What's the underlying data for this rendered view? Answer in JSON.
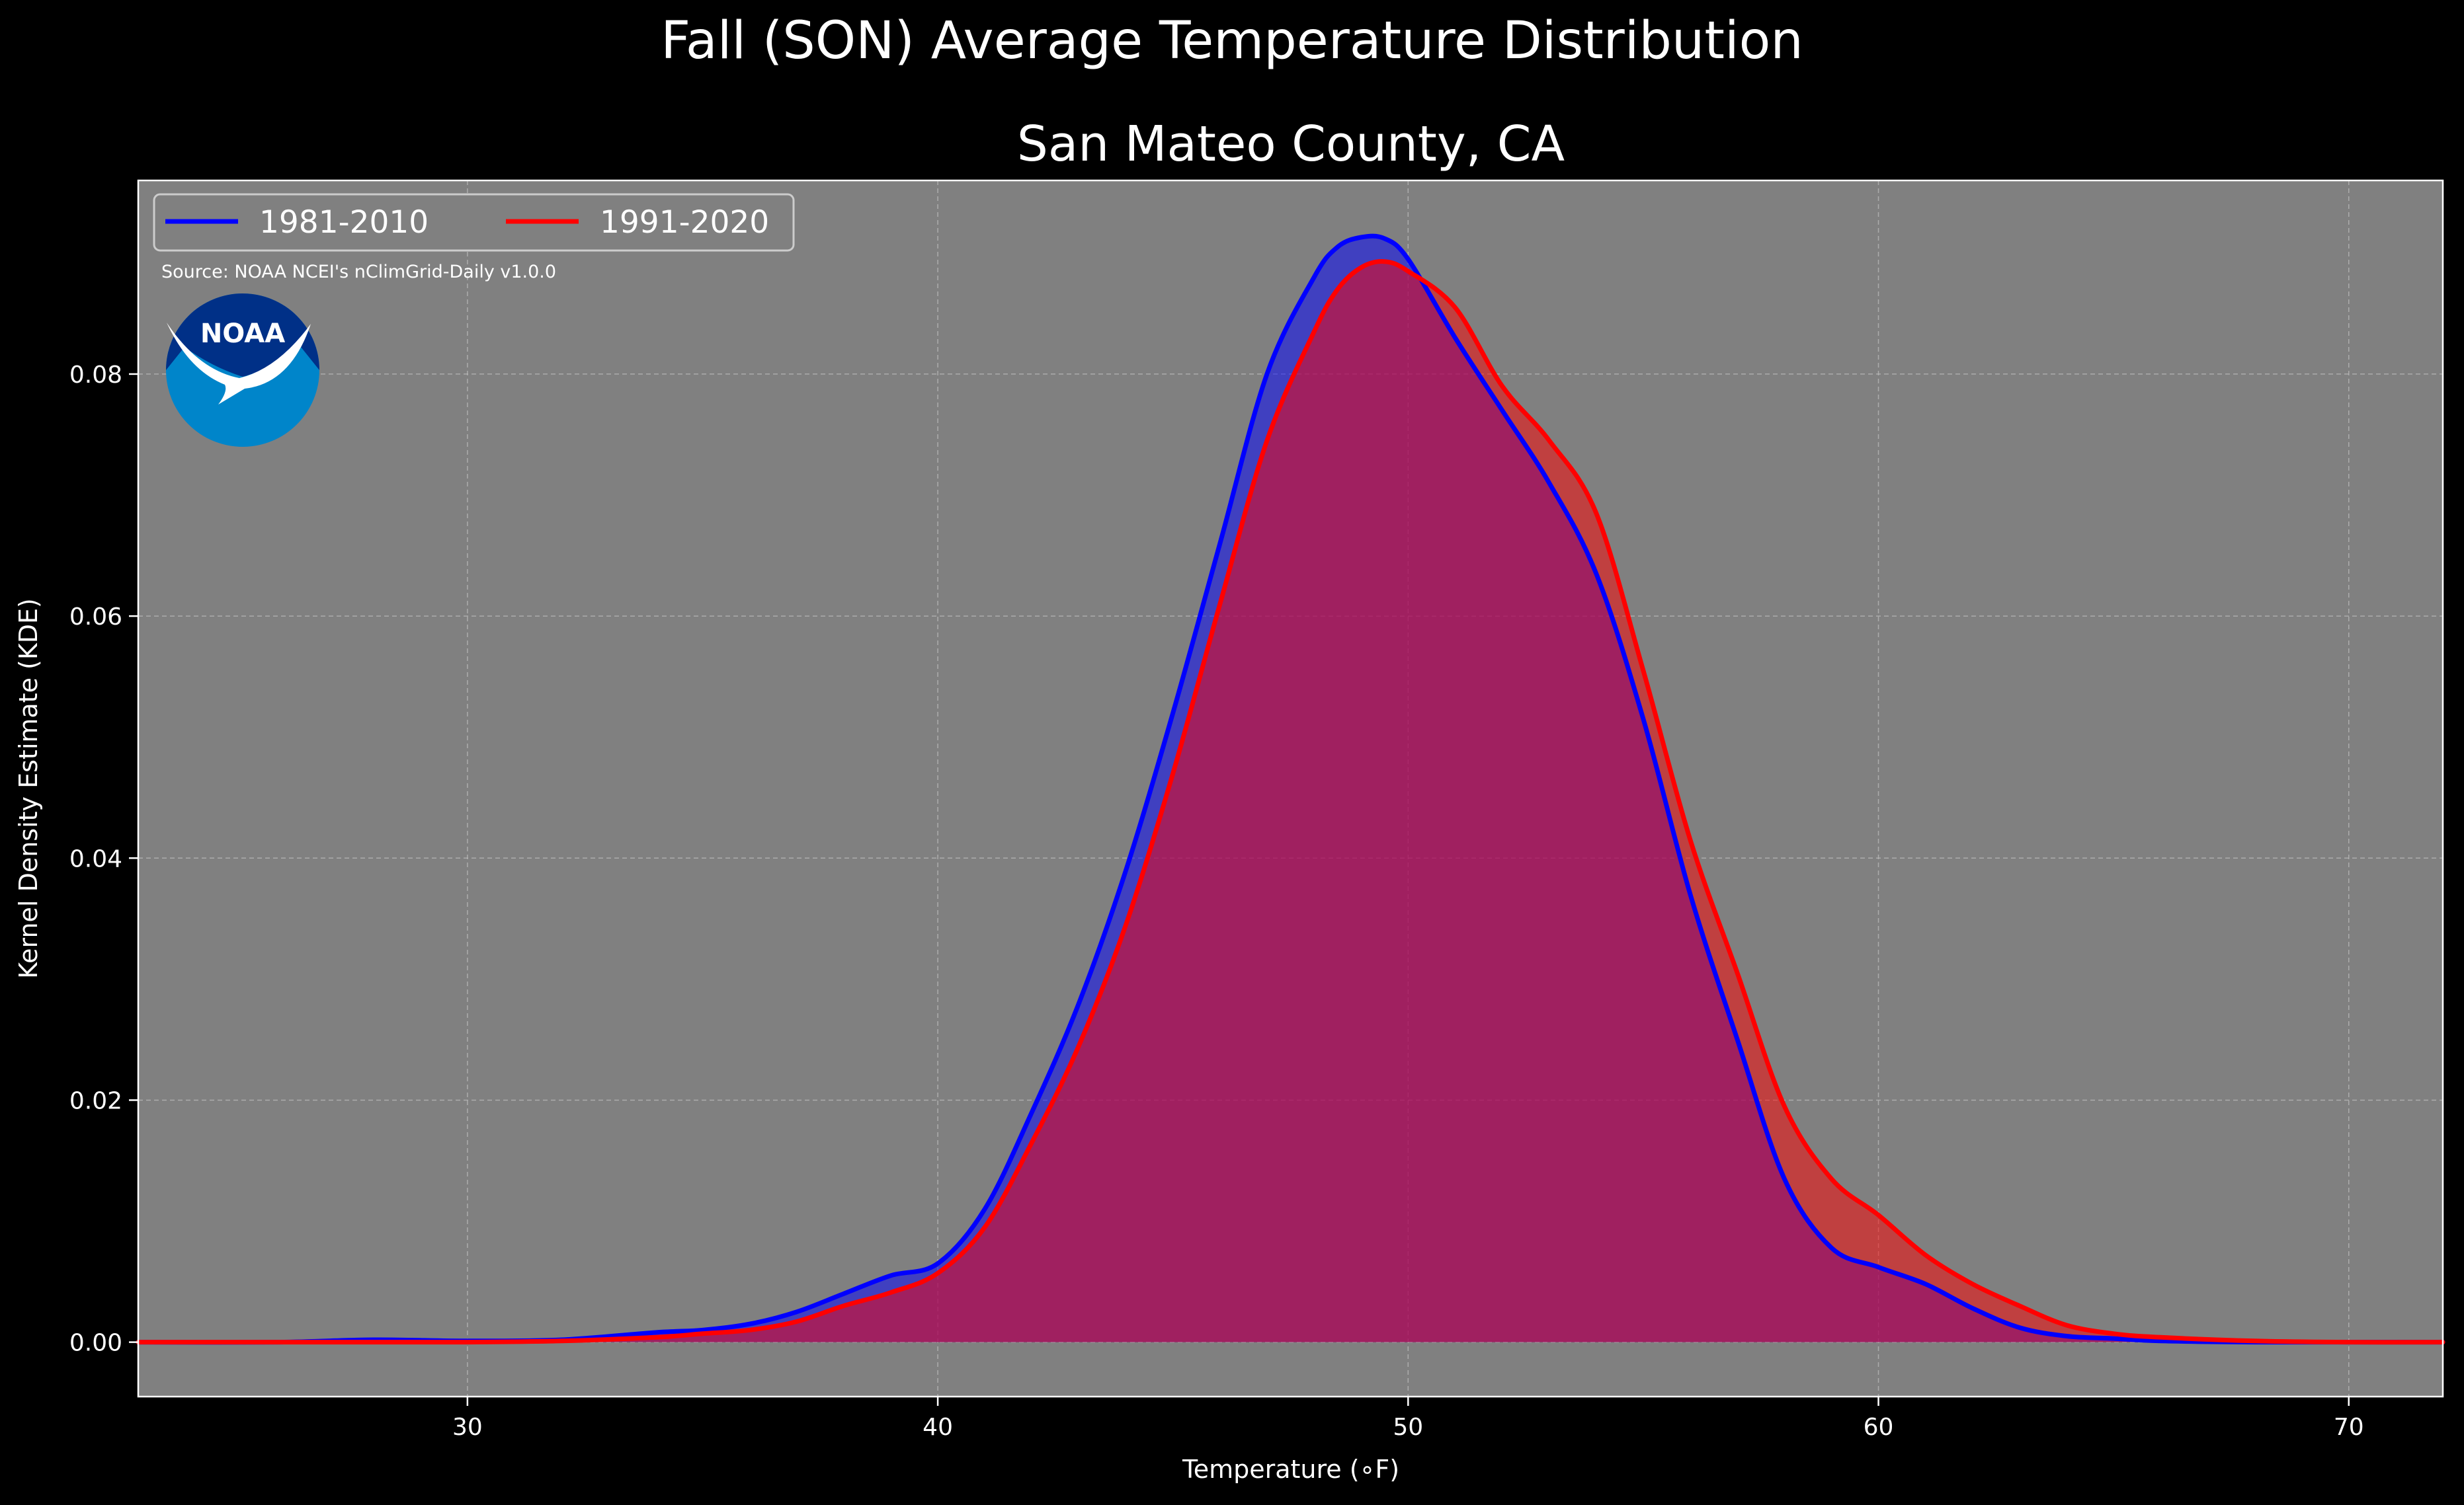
{
  "chart_data": {
    "type": "area",
    "suptitle": "Fall (SON) Average Temperature Distribution",
    "title": "San Mateo County, CA",
    "xlabel": "Temperature (∘F)",
    "ylabel": "Kernel Density Estimate (KDE)",
    "xlim": [
      23,
      72
    ],
    "ylim": [
      -0.0045,
      0.096
    ],
    "xticks": [
      30,
      40,
      50,
      60,
      70
    ],
    "yticks": [
      0.0,
      0.02,
      0.04,
      0.06,
      0.08
    ],
    "xtick_labels": [
      "30",
      "40",
      "50",
      "60",
      "70"
    ],
    "ytick_labels": [
      "0.00",
      "0.02",
      "0.04",
      "0.06",
      "0.08"
    ],
    "grid": true,
    "legend_position": "upper-left",
    "source": "Source: NOAA NCEI's nClimGrid-Daily v1.0.0",
    "logo_text": "NOAA",
    "colors": {
      "background": "#000000",
      "plot_background": "#808080",
      "series_1": "#0000ff",
      "series_2": "#ff0000",
      "overlap_fill": "#9e1f5c",
      "logo_light": "#0085ca",
      "logo_dark": "#003087"
    },
    "series": [
      {
        "name": "1981-2010",
        "color": "#0000ff",
        "x": [
          23,
          26,
          28,
          30,
          32,
          34,
          35,
          36,
          37,
          38,
          39,
          40,
          41,
          42,
          43,
          44,
          45,
          46,
          47,
          48,
          48.5,
          49,
          49.5,
          50,
          51,
          52,
          53,
          54,
          55,
          56,
          57,
          58,
          59,
          60,
          61,
          62,
          63,
          64,
          65,
          66,
          68,
          70,
          72
        ],
        "y": [
          0.0,
          0.0,
          0.0002,
          0.0001,
          0.0002,
          0.0008,
          0.001,
          0.0015,
          0.0025,
          0.004,
          0.0055,
          0.0065,
          0.011,
          0.019,
          0.028,
          0.039,
          0.052,
          0.066,
          0.08,
          0.088,
          0.0905,
          0.0913,
          0.0912,
          0.0895,
          0.083,
          0.077,
          0.071,
          0.0635,
          0.0515,
          0.037,
          0.025,
          0.0135,
          0.0078,
          0.0062,
          0.0048,
          0.0028,
          0.0012,
          0.0005,
          0.0003,
          0.0001,
          0.0,
          0.0,
          0.0
        ]
      },
      {
        "name": "1991-2020",
        "color": "#ff0000",
        "x": [
          23,
          26,
          28,
          30,
          32,
          34,
          35,
          36,
          37,
          38,
          39,
          40,
          41,
          42,
          43,
          44,
          45,
          46,
          47,
          48,
          48.5,
          49,
          49.5,
          50,
          51,
          52,
          53,
          54,
          55,
          56,
          57,
          58,
          59,
          60,
          61,
          62,
          63,
          64,
          65,
          66,
          68,
          70,
          72
        ],
        "y": [
          0.0,
          0.0,
          0.0,
          0.0,
          0.0001,
          0.0004,
          0.0007,
          0.001,
          0.0017,
          0.003,
          0.0041,
          0.0057,
          0.0095,
          0.0165,
          0.0245,
          0.0345,
          0.047,
          0.061,
          0.0745,
          0.0835,
          0.087,
          0.0888,
          0.0893,
          0.0885,
          0.0855,
          0.079,
          0.0745,
          0.0685,
          0.0555,
          0.0415,
          0.0305,
          0.0195,
          0.0135,
          0.0105,
          0.0072,
          0.0048,
          0.003,
          0.0014,
          0.0007,
          0.0004,
          0.0001,
          0.0,
          0.0
        ]
      }
    ]
  }
}
